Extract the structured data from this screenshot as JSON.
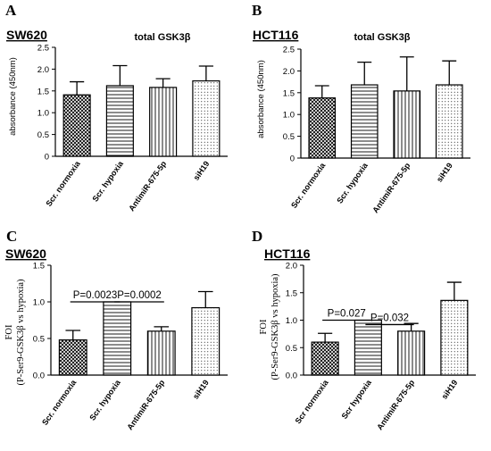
{
  "chart_data": [
    {
      "type": "bar",
      "panel_label": "A",
      "cell_line": "SW620",
      "title": "total GSK3β",
      "ylabel": "absorbance (450nm)",
      "ylim": [
        0,
        2.5
      ],
      "yticks": [
        "0",
        "0.5",
        "1.0",
        "1.5",
        "2.0",
        "2.5"
      ],
      "categories": [
        "Scr. normoxia",
        "Scr. hypoxia",
        "AntimiR-675-5p",
        "siH19"
      ],
      "values": [
        1.41,
        1.62,
        1.58,
        1.73
      ],
      "errors": [
        0.3,
        0.46,
        0.2,
        0.34
      ],
      "significance": []
    },
    {
      "type": "bar",
      "panel_label": "B",
      "cell_line": "HCT116",
      "title": "total GSK3β",
      "ylabel": "absorbance (450nm)",
      "ylim": [
        0,
        2.5
      ],
      "yticks": [
        "0",
        "0.5",
        "1.0",
        "1.5",
        "2.0",
        "2.5"
      ],
      "categories": [
        "Scr. normoxia",
        "Scr. hypoxia",
        "AntimiR-675-5p",
        "siH19"
      ],
      "values": [
        1.38,
        1.68,
        1.54,
        1.68
      ],
      "errors": [
        0.28,
        0.52,
        0.78,
        0.55
      ],
      "significance": []
    },
    {
      "type": "bar",
      "panel_label": "C",
      "cell_line": "SW620",
      "title": "",
      "ylabel": "FOI",
      "ylabel2": "(P-Ser9-GSK3β vs hypoxia)",
      "ylim": [
        0,
        1.5
      ],
      "yticks": [
        "0.0",
        "0.5",
        "1.0",
        "1.5"
      ],
      "categories": [
        "Scr. normoxia",
        "Scr. hypoxia",
        "AntimiR-675-5p",
        "siH19"
      ],
      "values": [
        0.48,
        1.0,
        0.6,
        0.92
      ],
      "errors": [
        0.13,
        0.0,
        0.06,
        0.22
      ],
      "significance": [
        {
          "from": 0,
          "to": 1,
          "label": "P=0.0023",
          "y": 1.0
        },
        {
          "from": 1,
          "to": 2,
          "label": "P=0.0002",
          "y": 1.0
        }
      ]
    },
    {
      "type": "bar",
      "panel_label": "D",
      "cell_line": "HCT116",
      "title": "",
      "ylabel": "FOI",
      "ylabel2": "(P-Ser9-GSK3β vs hypoxia)",
      "ylim": [
        0,
        2.0
      ],
      "yticks": [
        "0.0",
        "0.5",
        "1.0",
        "1.5",
        "2.0"
      ],
      "categories": [
        "Scr normoxia",
        "Scr hypoxia",
        "AntimiR-675-5p",
        "siH19"
      ],
      "values": [
        0.6,
        1.0,
        0.8,
        1.36
      ],
      "errors": [
        0.16,
        0.0,
        0.14,
        0.33
      ],
      "significance": [
        {
          "from": 0,
          "to": 1,
          "label": "P=0.027",
          "y": 1.0
        },
        {
          "from": 1,
          "to": 2,
          "label": "P=0.032",
          "y": 0.92
        }
      ]
    }
  ]
}
